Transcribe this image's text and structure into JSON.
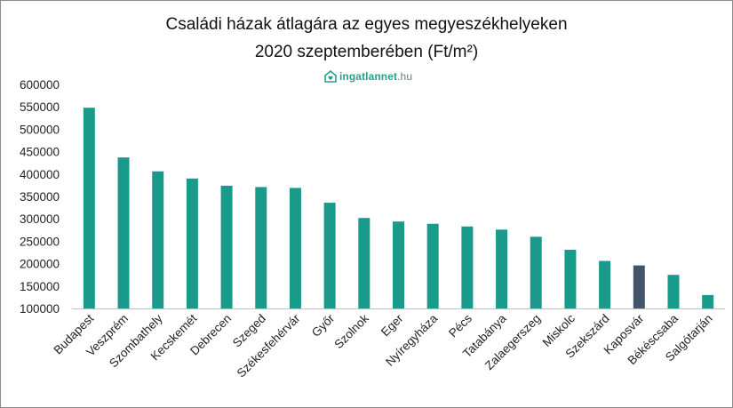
{
  "chart_data": {
    "type": "bar",
    "title_line1": "Családi házak átlagára az egyes megyeszékhelyeken",
    "title_line2": "2020 szeptemberében  (Ft/m²)",
    "logo": {
      "brand": "ingatlannet",
      "domain": ".hu"
    },
    "categories": [
      "Budapest",
      "Veszprém",
      "Szombathely",
      "Kecskemét",
      "Debrecen",
      "Szeged",
      "Székesfehérvár",
      "Győr",
      "Szolnok",
      "Eger",
      "Nyíregyháza",
      "Pécs",
      "Tatabánya",
      "Zalaegerszeg",
      "Miskolc",
      "Szekszárd",
      "Kaposvár",
      "Békéscsaba",
      "Salgótarján"
    ],
    "values": [
      548000,
      437000,
      406000,
      390000,
      374000,
      371000,
      369000,
      336000,
      302000,
      294000,
      289000,
      283000,
      276000,
      260000,
      231000,
      206000,
      196000,
      175000,
      130000
    ],
    "highlight_index": 16,
    "colors": {
      "bar": "#1a9a8a",
      "highlight": "#44546a",
      "axis": "#bfbfbf"
    },
    "ylim": [
      100000,
      600000
    ],
    "yticks": [
      "600000",
      "550000",
      "500000",
      "450000",
      "400000",
      "350000",
      "300000",
      "250000",
      "200000",
      "150000",
      "100000"
    ],
    "grid": false,
    "legend": "none"
  }
}
